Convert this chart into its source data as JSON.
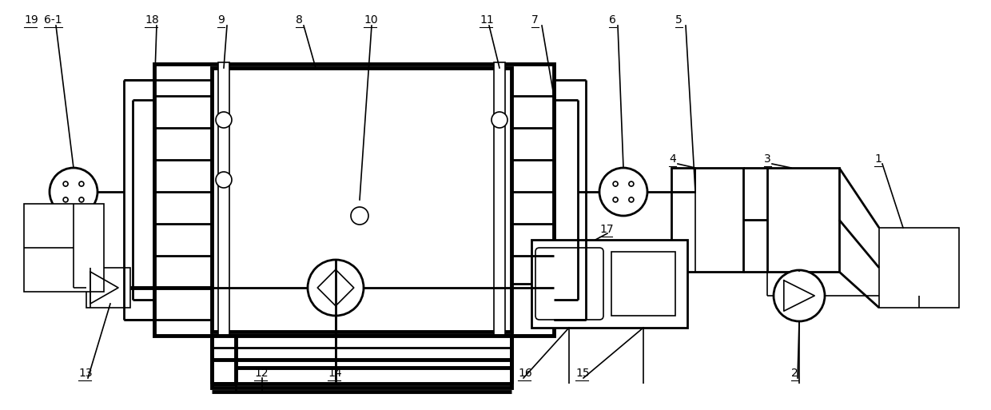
{
  "bg_color": "#ffffff",
  "thick_lw": 3.5,
  "medium_lw": 2.0,
  "thin_lw": 1.2,
  "label_fontsize": 10,
  "fig_width": 12.4,
  "fig_height": 5.13,
  "dpi": 100
}
